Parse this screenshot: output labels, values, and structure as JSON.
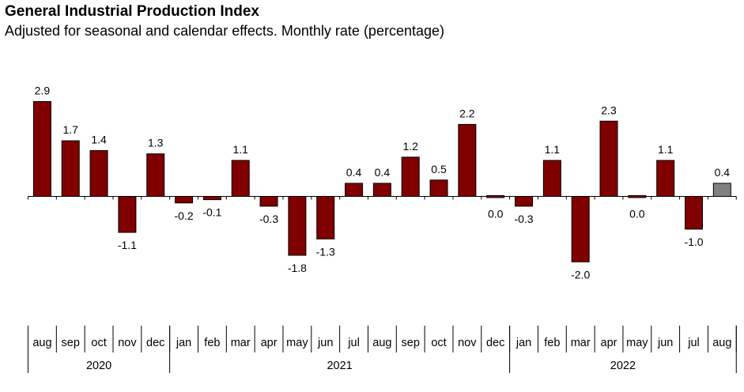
{
  "title": "General Industrial Production Index",
  "subtitle": "Adjusted for seasonal and calendar effects. Monthly rate (percentage)",
  "colors": {
    "bar": "#800000",
    "highlight": "#808080",
    "outline": "#000000"
  },
  "chart_data": {
    "type": "bar",
    "title": "General Industrial Production Index",
    "subtitle": "Adjusted for seasonal and calendar effects. Monthly rate (percentage)",
    "categories": [
      "aug",
      "sep",
      "oct",
      "nov",
      "dec",
      "jan",
      "feb",
      "mar",
      "apr",
      "may",
      "jun",
      "jul",
      "aug",
      "sep",
      "oct",
      "nov",
      "dec",
      "jan",
      "feb",
      "mar",
      "apr",
      "may",
      "jun",
      "jul",
      "aug"
    ],
    "values": [
      2.9,
      1.7,
      1.4,
      -1.1,
      1.3,
      -0.2,
      -0.1,
      1.1,
      -0.3,
      -1.8,
      -1.3,
      0.4,
      0.4,
      1.2,
      0.5,
      2.2,
      0.0,
      -0.3,
      1.1,
      -2.0,
      2.3,
      0.0,
      1.1,
      -1.0,
      0.4
    ],
    "value_labels": [
      "2.9",
      "1.7",
      "1.4",
      "-1.1",
      "1.3",
      "-0.2",
      "-0.1",
      "1.1",
      "-0.3",
      "-1.8",
      "-1.3",
      "0.4",
      "0.4",
      "1.2",
      "0.5",
      "2.2",
      "0.0",
      "-0.3",
      "1.1",
      "-2.0",
      "2.3",
      "0.0",
      "1.1",
      "-1.0",
      "0.4"
    ],
    "highlight_index": 24,
    "year_groups": [
      {
        "label": "2020",
        "count": 5
      },
      {
        "label": "2021",
        "count": 12
      },
      {
        "label": "2022",
        "count": 8
      }
    ],
    "xlabel": "",
    "ylabel": "",
    "ylim": [
      -2.4,
      3.1
    ],
    "grid": false,
    "legend": "none"
  }
}
